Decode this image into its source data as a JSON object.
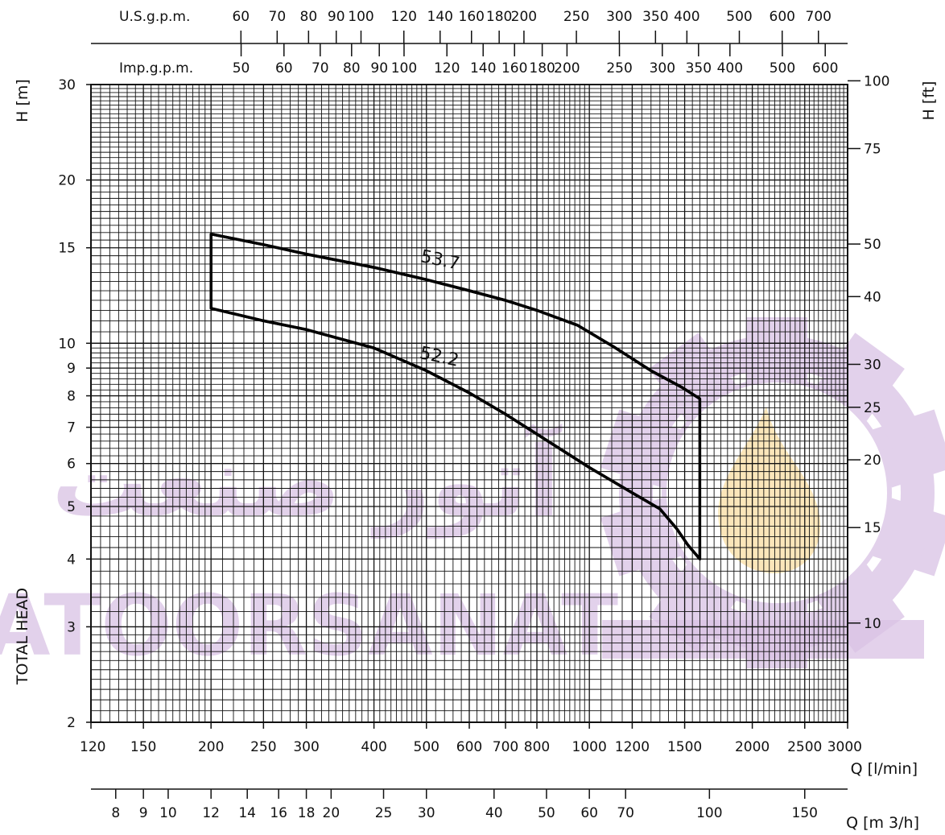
{
  "chart_data": {
    "type": "line",
    "scale": "log-log",
    "x_unit_label": "Q [l/min]",
    "y_left_label": "H [m]",
    "y_right_label": "H [ft]",
    "y_left_title": "TOTAL HEAD",
    "flow_m3h_label": "Q [m 3/h]",
    "xlim": [
      120,
      3000
    ],
    "ylim": [
      2,
      30
    ],
    "x_ticks": [
      120,
      150,
      200,
      250,
      300,
      400,
      500,
      600,
      700,
      800,
      1000,
      1200,
      1500,
      2000,
      2500,
      3000
    ],
    "y_ticks": [
      2,
      3,
      4,
      5,
      6,
      7,
      8,
      9,
      10,
      15,
      20,
      30
    ],
    "ft_ticks": [
      10,
      15,
      20,
      25,
      30,
      40,
      50,
      75,
      100
    ],
    "usgpm_label": "U.S.g.p.m.",
    "usgpm_ticks": [
      60,
      70,
      80,
      90,
      100,
      120,
      140,
      160,
      180,
      200,
      250,
      300,
      350,
      400,
      500,
      600,
      700
    ],
    "impgpm_label": "Imp.g.p.m.",
    "impgpm_ticks": [
      50,
      60,
      70,
      80,
      90,
      100,
      120,
      140,
      160,
      180,
      200,
      250,
      300,
      350,
      400,
      500,
      600
    ],
    "m3h_ticks": [
      8,
      9,
      10,
      12,
      14,
      16,
      18,
      20,
      25,
      30,
      40,
      50,
      60,
      70,
      100,
      150
    ],
    "series": [
      {
        "name": "53.7",
        "x": [
          200,
          250,
          300,
          400,
          500,
          600,
          700,
          800,
          950,
          1100,
          1300,
          1480,
          1600
        ],
        "y": [
          15.9,
          15.2,
          14.6,
          13.8,
          13.1,
          12.5,
          12.0,
          11.5,
          10.8,
          9.9,
          8.9,
          8.3,
          7.9
        ]
      },
      {
        "name": "52.2",
        "x": [
          200,
          250,
          300,
          400,
          500,
          600,
          700,
          800,
          1000,
          1200,
          1350,
          1450,
          1520,
          1600
        ],
        "y": [
          11.6,
          11.0,
          10.6,
          9.8,
          8.9,
          8.1,
          7.4,
          6.8,
          5.9,
          5.3,
          4.95,
          4.55,
          4.25,
          4.0
        ]
      }
    ],
    "operating_range": {
      "q_min": 200,
      "q_max": 1600
    }
  },
  "watermark": {
    "persian": "آتور صنعت",
    "latin": "ATOORSANAT",
    "color": "#d9c2e4",
    "flame_color": "#fbe3b3"
  }
}
